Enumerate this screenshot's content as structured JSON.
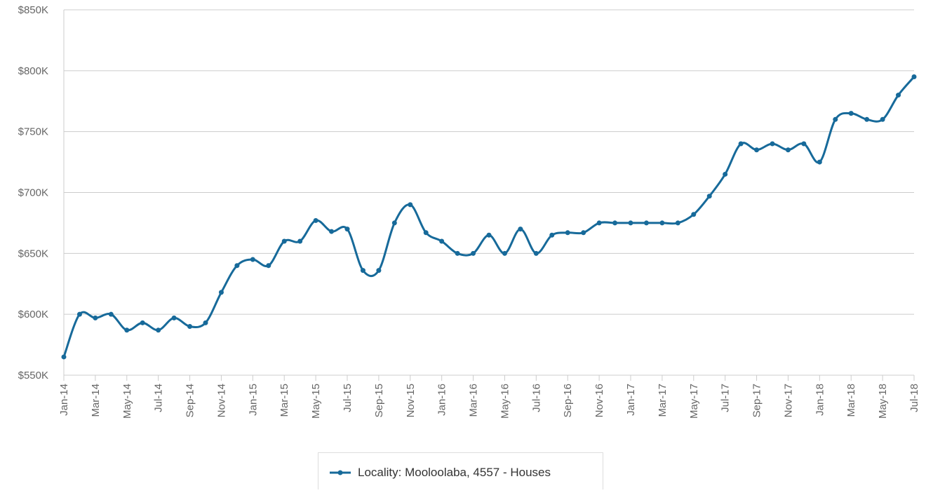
{
  "chart_data": {
    "type": "line",
    "categories": [
      "Jan-14",
      null,
      "Mar-14",
      null,
      "May-14",
      null,
      "Jul-14",
      null,
      "Sep-14",
      null,
      "Nov-14",
      null,
      "Jan-15",
      null,
      "Mar-15",
      null,
      "May-15",
      null,
      "Jul-15",
      null,
      "Sep-15",
      null,
      "Nov-15",
      null,
      "Jan-16",
      null,
      "Mar-16",
      null,
      "May-16",
      null,
      "Jul-16",
      null,
      "Sep-16",
      null,
      "Nov-16",
      null,
      "Jan-17",
      null,
      "Mar-17",
      null,
      "May-17",
      null,
      "Jul-17",
      null,
      "Sep-17",
      null,
      "Nov-17",
      null,
      "Jan-18",
      null,
      "Mar-18",
      null,
      "May-18",
      null,
      "Jul-18"
    ],
    "series": [
      {
        "name": "Locality: Mooloolaba, 4557 - Houses",
        "color": "#176a9a",
        "values": [
          565000,
          600000,
          597000,
          600000,
          587000,
          593000,
          587000,
          597000,
          590000,
          593000,
          618000,
          640000,
          645000,
          640000,
          660000,
          660000,
          677000,
          668000,
          670000,
          636000,
          636000,
          675000,
          690000,
          667000,
          660000,
          650000,
          650000,
          665000,
          650000,
          670000,
          650000,
          665000,
          667000,
          667000,
          675000,
          675000,
          675000,
          675000,
          675000,
          675000,
          682000,
          697000,
          715000,
          740000,
          735000,
          740000,
          735000,
          740000,
          725000,
          760000,
          765000,
          760000,
          760000,
          780000,
          795000
        ]
      }
    ],
    "ylim": [
      550000,
      850000
    ],
    "yticks": [
      {
        "value": 550000,
        "label": "$550K"
      },
      {
        "value": 600000,
        "label": "$600K"
      },
      {
        "value": 650000,
        "label": "$650K"
      },
      {
        "value": 700000,
        "label": "$700K"
      },
      {
        "value": 750000,
        "label": "$750K"
      },
      {
        "value": 800000,
        "label": "$800K"
      },
      {
        "value": 850000,
        "label": "$850K"
      }
    ],
    "grid": true,
    "legend": "bottom"
  }
}
